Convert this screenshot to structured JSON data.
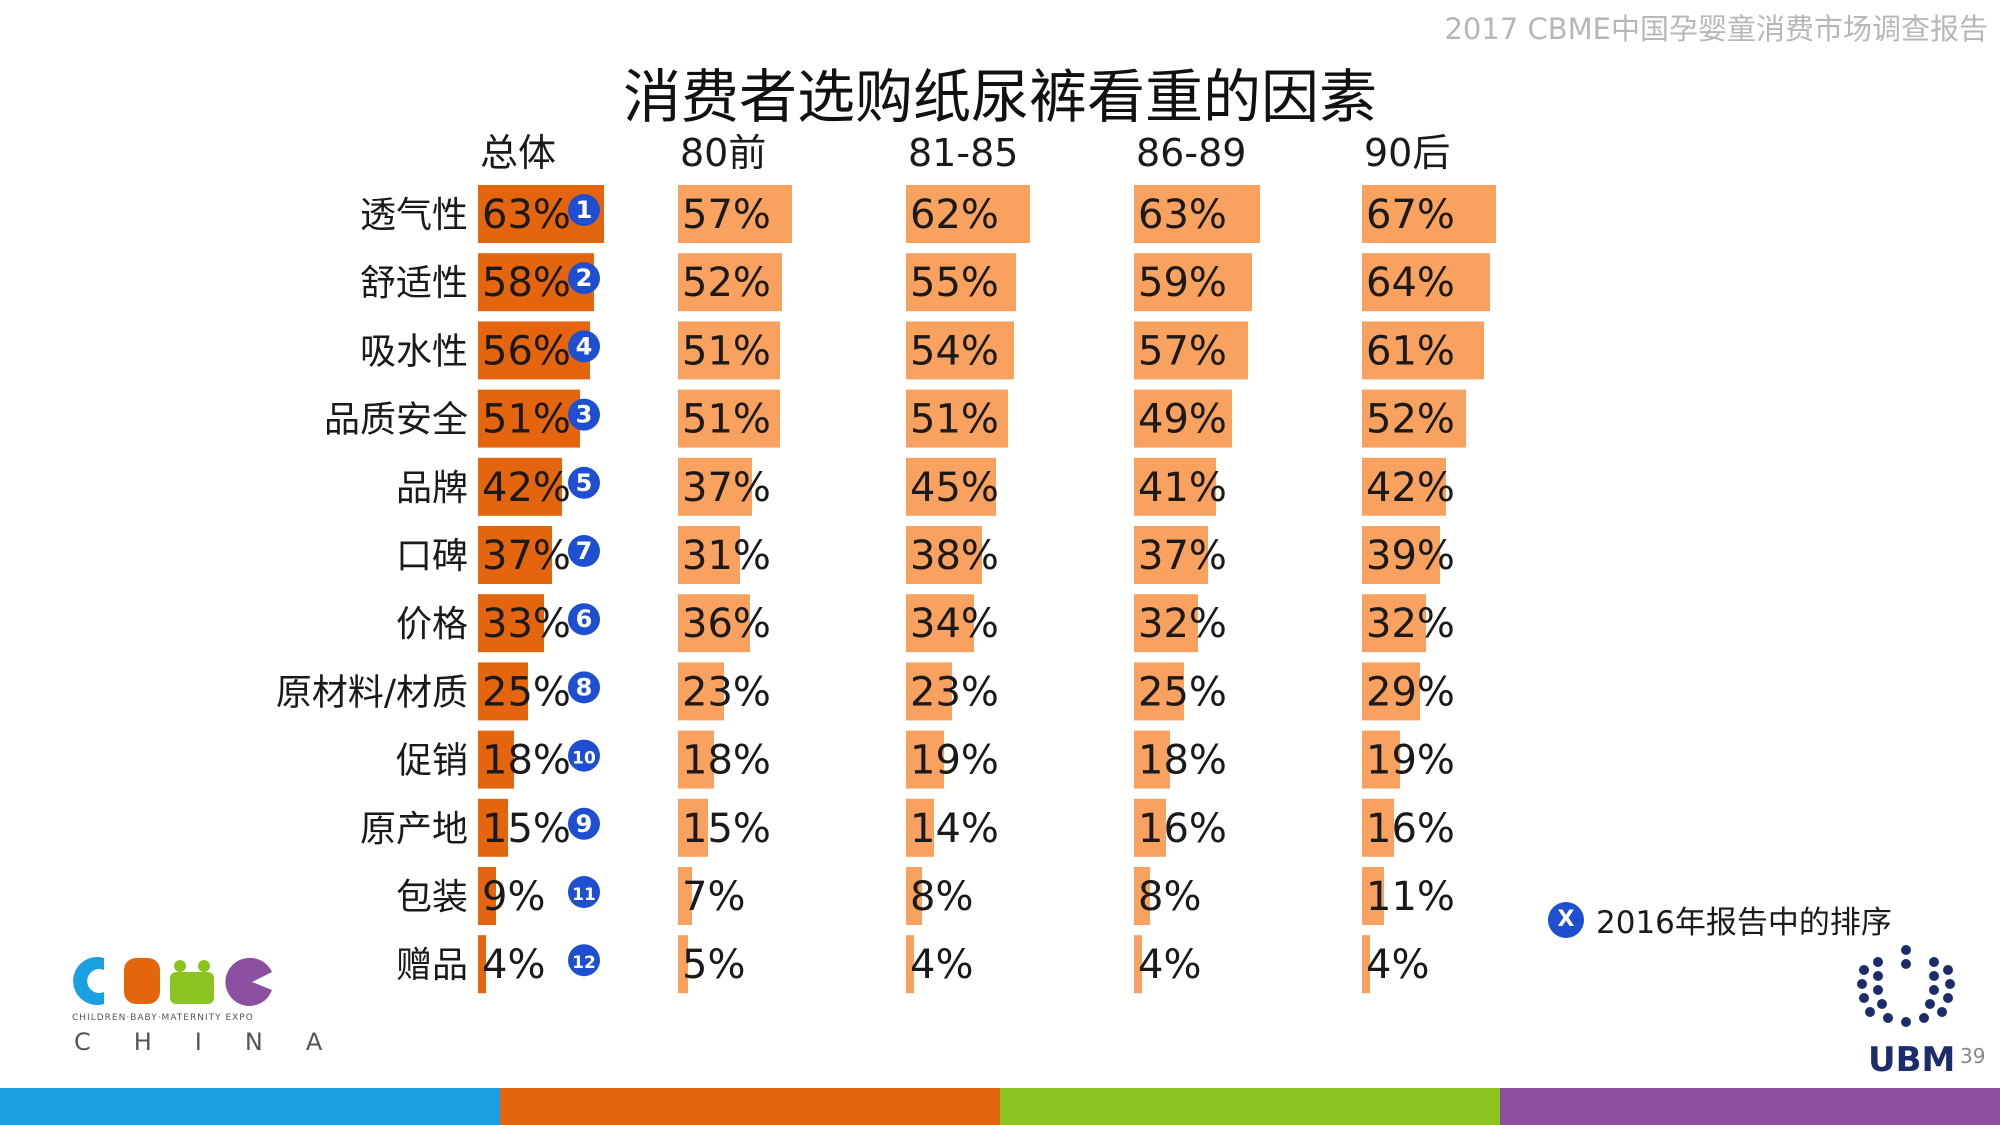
{
  "header_note": "2017 CBME中国孕婴童消费市场调查报告",
  "title": "消费者选购纸尿裤看重的因素",
  "legend": {
    "badge": "X",
    "label": "2016年报告中的排序"
  },
  "logos": {
    "cbme_sub": "CHILDREN·BABY·MATERNITY EXPO",
    "cbme_china": "CHINA",
    "ubm": "UBM"
  },
  "page_number": "39",
  "colors": {
    "overall_bar": "#e5650f",
    "segment_bar": "#f9a15f",
    "rank_badge": "#1f4fd1",
    "footer": [
      "#1a9fe0",
      "#e5650f",
      "#8cc521",
      "#8c4ea0"
    ]
  },
  "chart_data": {
    "type": "bar",
    "orientation": "horizontal",
    "categories": [
      "透气性",
      "舒适性",
      "吸水性",
      "品质安全",
      "品牌",
      "口碑",
      "价格",
      "原材料/材质",
      "促销",
      "原产地",
      "包装",
      "赠品"
    ],
    "series": [
      {
        "name": "总体",
        "values": [
          63,
          58,
          56,
          51,
          42,
          37,
          33,
          25,
          18,
          15,
          9,
          4
        ]
      },
      {
        "name": "80前",
        "values": [
          57,
          52,
          51,
          51,
          37,
          31,
          36,
          23,
          18,
          15,
          7,
          5
        ]
      },
      {
        "name": "81-85",
        "values": [
          62,
          55,
          54,
          51,
          45,
          38,
          34,
          23,
          19,
          14,
          8,
          4
        ]
      },
      {
        "name": "86-89",
        "values": [
          63,
          59,
          57,
          49,
          41,
          37,
          32,
          25,
          18,
          16,
          8,
          4
        ]
      },
      {
        "name": "90后",
        "values": [
          67,
          64,
          61,
          52,
          42,
          39,
          32,
          29,
          19,
          16,
          11,
          4
        ]
      }
    ],
    "ranks_2016": [
      1,
      2,
      4,
      3,
      5,
      7,
      6,
      8,
      10,
      9,
      11,
      12
    ],
    "value_suffix": "%"
  }
}
